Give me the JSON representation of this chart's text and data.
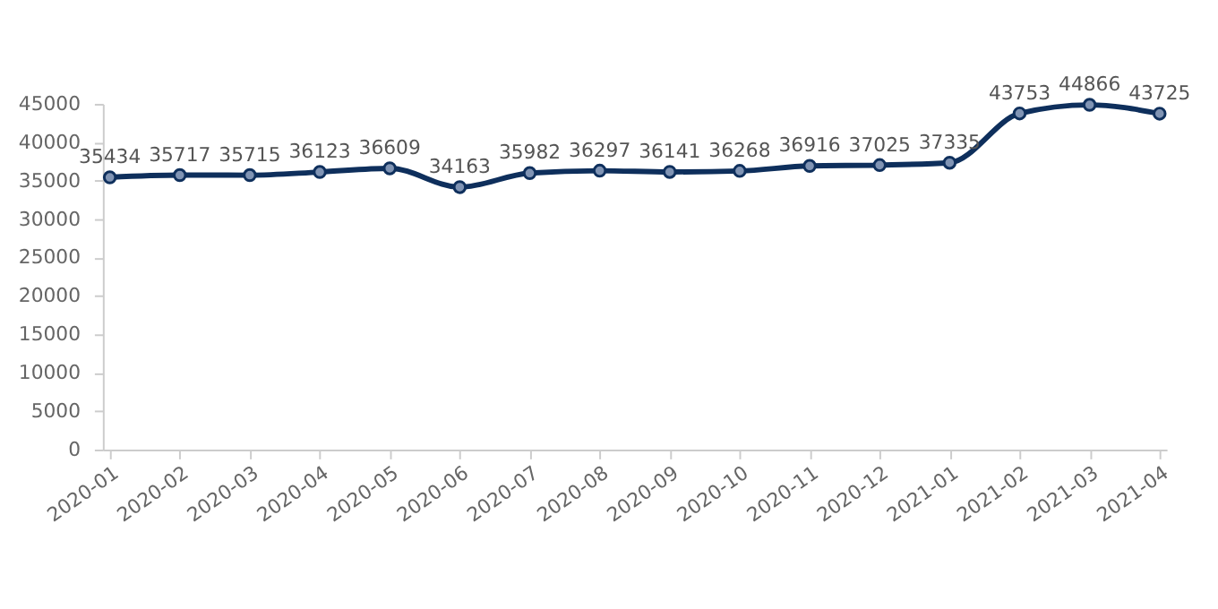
{
  "chart_data": {
    "type": "line",
    "categories": [
      "2020-01",
      "2020-02",
      "2020-03",
      "2020-04",
      "2020-05",
      "2020-06",
      "2020-07",
      "2020-08",
      "2020-09",
      "2020-10",
      "2020-11",
      "2020-12",
      "2021-01",
      "2021-02",
      "2021-03",
      "2021-04"
    ],
    "series": [
      {
        "color": "#0e2f5c",
        "values": [
          35434,
          35717,
          35715,
          36123,
          36609,
          34163,
          35982,
          36297,
          36141,
          36268,
          36916,
          37025,
          37335,
          43753,
          44866,
          43725
        ]
      }
    ],
    "ylim": [
      0,
      45000
    ],
    "yticks": [
      0,
      5000,
      10000,
      15000,
      20000,
      25000,
      30000,
      35000,
      40000,
      45000
    ],
    "grid": false,
    "legend": false,
    "marker": "circle",
    "line_style": "solid",
    "data_labels": true
  }
}
